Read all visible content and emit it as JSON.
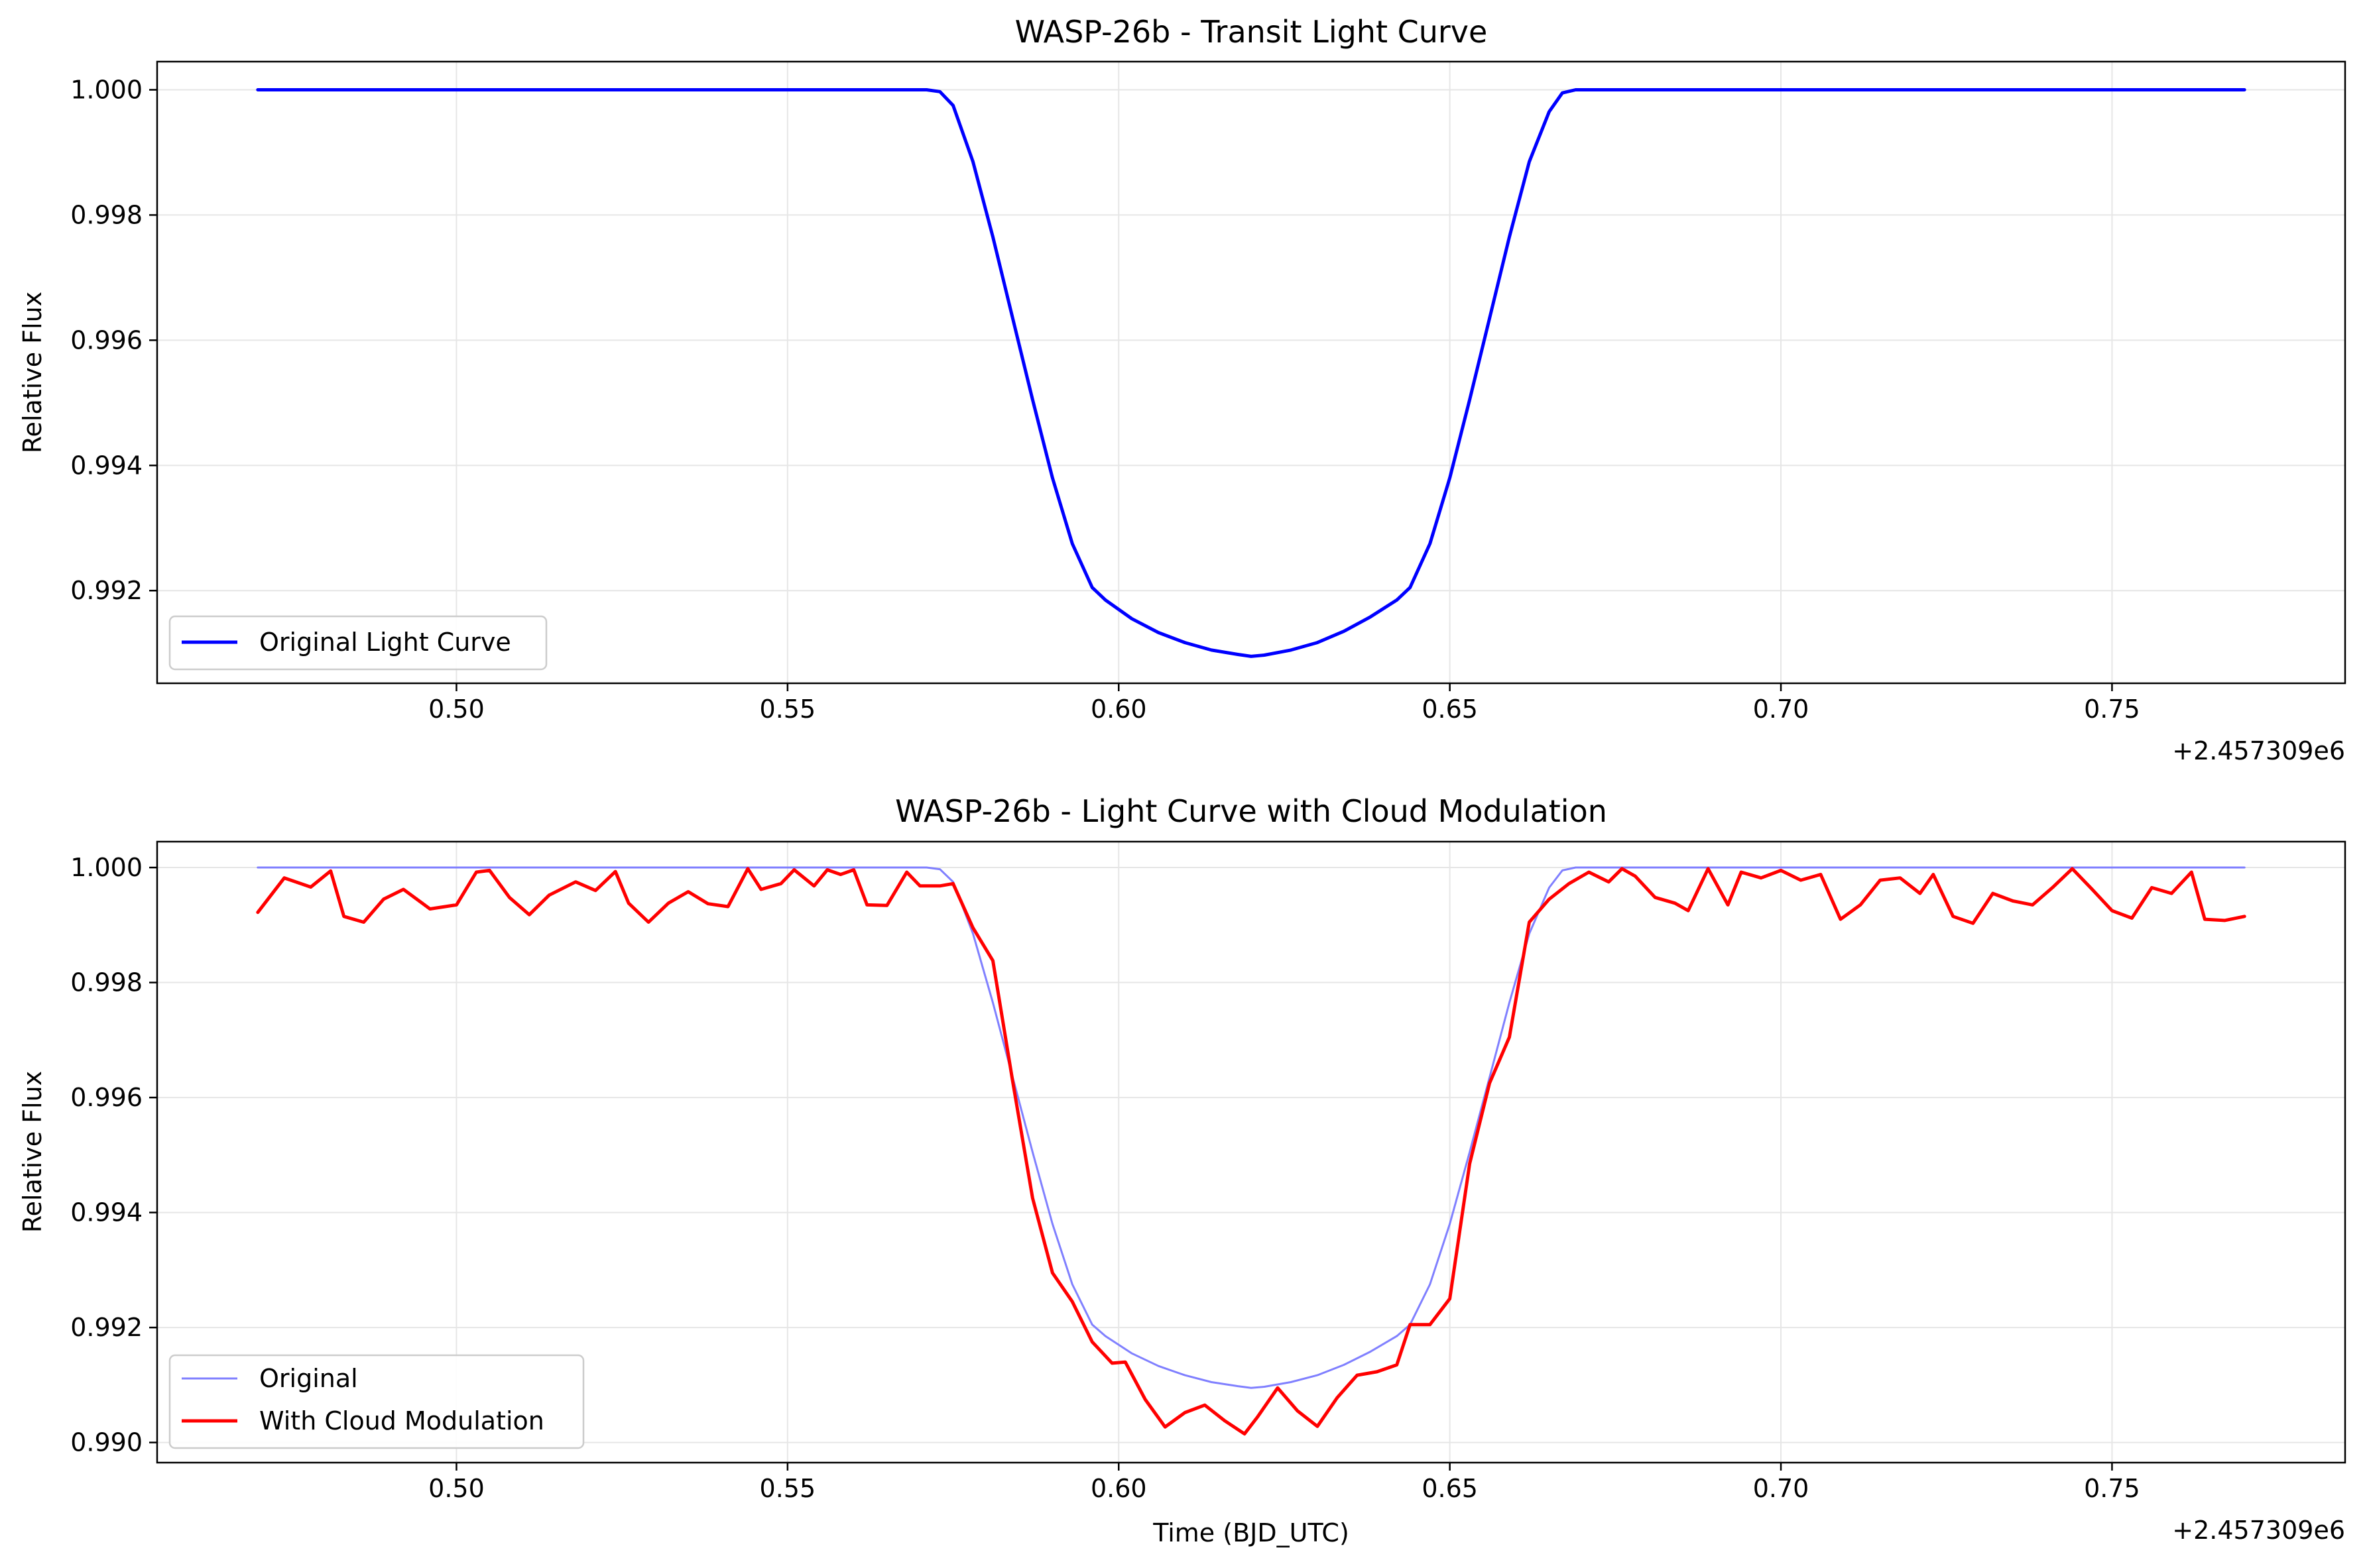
{
  "colors": {
    "original_line": "#0000ff",
    "original_overlay": "#8080ff",
    "modulated_line": "#ff0000",
    "grid": "#e6e6e6",
    "frame": "#000000"
  },
  "chart_data": [
    {
      "type": "line",
      "title": "WASP-26b - Transit Light Curve",
      "xlabel": "",
      "ylabel": "Relative Flux",
      "x_offset_label": "+2.457309e6",
      "x_offset": 2457309,
      "xlim": [
        0.4548,
        0.7852
      ],
      "ylim": [
        0.99052,
        1.00045
      ],
      "xticks": [
        0.5,
        0.55,
        0.6,
        0.65,
        0.7,
        0.75
      ],
      "xtick_labels": [
        "0.50",
        "0.55",
        "0.60",
        "0.65",
        "0.70",
        "0.75"
      ],
      "yticks": [
        0.992,
        0.994,
        0.996,
        0.998,
        1.0
      ],
      "ytick_labels": [
        "0.992",
        "0.994",
        "0.996",
        "0.998",
        "1.000"
      ],
      "grid": true,
      "legend_position": "lower-left",
      "series": [
        {
          "name": "Original Light Curve",
          "color": "#0000ff",
          "x": [
            0.47,
            0.5,
            0.55,
            0.571,
            0.573,
            0.575,
            0.578,
            0.581,
            0.584,
            0.587,
            0.59,
            0.593,
            0.596,
            0.598,
            0.602,
            0.606,
            0.61,
            0.614,
            0.618,
            0.62,
            0.622,
            0.626,
            0.63,
            0.634,
            0.638,
            0.642,
            0.644,
            0.647,
            0.65,
            0.653,
            0.656,
            0.659,
            0.662,
            0.665,
            0.667,
            0.669,
            0.7,
            0.75,
            0.77
          ],
          "y": [
            1.0,
            1.0,
            1.0,
            1.0,
            0.99997,
            0.99975,
            0.99885,
            0.99765,
            0.99635,
            0.99505,
            0.9938,
            0.99275,
            0.99205,
            0.99185,
            0.99155,
            0.99133,
            0.99117,
            0.99105,
            0.99098,
            0.99095,
            0.99097,
            0.99105,
            0.99117,
            0.99135,
            0.99158,
            0.99185,
            0.99205,
            0.99275,
            0.9938,
            0.99505,
            0.99635,
            0.99765,
            0.99885,
            0.99965,
            0.99995,
            1.0,
            1.0,
            1.0,
            1.0
          ]
        }
      ]
    },
    {
      "type": "line",
      "title": "WASP-26b - Light Curve with Cloud Modulation",
      "xlabel": "Time (BJD_UTC)",
      "ylabel": "Relative Flux",
      "x_offset_label": "+2.457309e6",
      "x_offset": 2457309,
      "xlim": [
        0.4548,
        0.7852
      ],
      "ylim": [
        0.98965,
        1.00045
      ],
      "xticks": [
        0.5,
        0.55,
        0.6,
        0.65,
        0.7,
        0.75
      ],
      "xtick_labels": [
        "0.50",
        "0.55",
        "0.60",
        "0.65",
        "0.70",
        "0.75"
      ],
      "yticks": [
        0.99,
        0.992,
        0.994,
        0.996,
        0.998,
        1.0
      ],
      "ytick_labels": [
        "0.990",
        "0.992",
        "0.994",
        "0.996",
        "0.998",
        "1.000"
      ],
      "grid": true,
      "legend_position": "lower-left",
      "series": [
        {
          "name": "Original",
          "color": "#8080ff",
          "x": [
            0.47,
            0.5,
            0.55,
            0.571,
            0.573,
            0.575,
            0.578,
            0.581,
            0.584,
            0.587,
            0.59,
            0.593,
            0.596,
            0.598,
            0.602,
            0.606,
            0.61,
            0.614,
            0.618,
            0.62,
            0.622,
            0.626,
            0.63,
            0.634,
            0.638,
            0.642,
            0.644,
            0.647,
            0.65,
            0.653,
            0.656,
            0.659,
            0.662,
            0.665,
            0.667,
            0.669,
            0.7,
            0.75,
            0.77
          ],
          "y": [
            1.0,
            1.0,
            1.0,
            1.0,
            0.99997,
            0.99975,
            0.99885,
            0.99765,
            0.99635,
            0.99505,
            0.9938,
            0.99275,
            0.99205,
            0.99185,
            0.99155,
            0.99133,
            0.99117,
            0.99105,
            0.99098,
            0.99095,
            0.99097,
            0.99105,
            0.99117,
            0.99135,
            0.99158,
            0.99185,
            0.99205,
            0.99275,
            0.9938,
            0.99505,
            0.99635,
            0.99765,
            0.99885,
            0.99965,
            0.99995,
            1.0,
            1.0,
            1.0,
            1.0
          ]
        },
        {
          "name": "With Cloud Modulation",
          "color": "#ff0000",
          "x": [
            0.47,
            0.474,
            0.478,
            0.481,
            0.483,
            0.486,
            0.489,
            0.492,
            0.496,
            0.5,
            0.503,
            0.505,
            0.508,
            0.511,
            0.514,
            0.518,
            0.521,
            0.524,
            0.526,
            0.529,
            0.532,
            0.535,
            0.538,
            0.541,
            0.544,
            0.546,
            0.549,
            0.551,
            0.554,
            0.556,
            0.558,
            0.56,
            0.562,
            0.565,
            0.568,
            0.57,
            0.573,
            0.575,
            0.578,
            0.581,
            0.584,
            0.587,
            0.59,
            0.593,
            0.596,
            0.599,
            0.601,
            0.604,
            0.607,
            0.61,
            0.613,
            0.616,
            0.619,
            0.621,
            0.624,
            0.627,
            0.63,
            0.633,
            0.636,
            0.639,
            0.642,
            0.644,
            0.647,
            0.65,
            0.653,
            0.656,
            0.659,
            0.662,
            0.665,
            0.668,
            0.671,
            0.674,
            0.676,
            0.678,
            0.681,
            0.684,
            0.686,
            0.689,
            0.692,
            0.694,
            0.697,
            0.7,
            0.703,
            0.706,
            0.709,
            0.712,
            0.715,
            0.718,
            0.721,
            0.723,
            0.726,
            0.729,
            0.732,
            0.735,
            0.738,
            0.741,
            0.744,
            0.747,
            0.75,
            0.753,
            0.756,
            0.759,
            0.762,
            0.764,
            0.767,
            0.77
          ],
          "y": [
            0.99922,
            0.99982,
            0.99966,
            0.99994,
            0.99915,
            0.99905,
            0.99945,
            0.99962,
            0.99928,
            0.99935,
            0.99992,
            0.99995,
            0.99948,
            0.99918,
            0.99952,
            0.99975,
            0.9996,
            0.99993,
            0.99938,
            0.99905,
            0.99938,
            0.99958,
            0.99937,
            0.99932,
            0.99998,
            0.99962,
            0.99972,
            0.99996,
            0.99968,
            0.99996,
            0.99988,
            0.99996,
            0.99935,
            0.99934,
            0.99992,
            0.99968,
            0.99968,
            0.99972,
            0.99895,
            0.99838,
            0.99628,
            0.99425,
            0.99295,
            0.99245,
            0.99175,
            0.99138,
            0.9914,
            0.99075,
            0.99027,
            0.99052,
            0.99065,
            0.99038,
            0.99015,
            0.99045,
            0.99095,
            0.99055,
            0.99028,
            0.99078,
            0.99117,
            0.99123,
            0.99135,
            0.99205,
            0.99205,
            0.9925,
            0.99485,
            0.99625,
            0.99705,
            0.99905,
            0.99945,
            0.99972,
            0.99992,
            0.99975,
            0.99998,
            0.99985,
            0.99948,
            0.99938,
            0.99925,
            0.99998,
            0.99935,
            0.99992,
            0.99982,
            0.99995,
            0.99978,
            0.99988,
            0.9991,
            0.99935,
            0.99978,
            0.99982,
            0.99955,
            0.99988,
            0.99915,
            0.99903,
            0.99955,
            0.99942,
            0.99935,
            0.99965,
            0.99998,
            0.99962,
            0.99925,
            0.99912,
            0.99965,
            0.99955,
            0.99992,
            0.9991,
            0.99908,
            0.99915
          ]
        }
      ]
    }
  ]
}
